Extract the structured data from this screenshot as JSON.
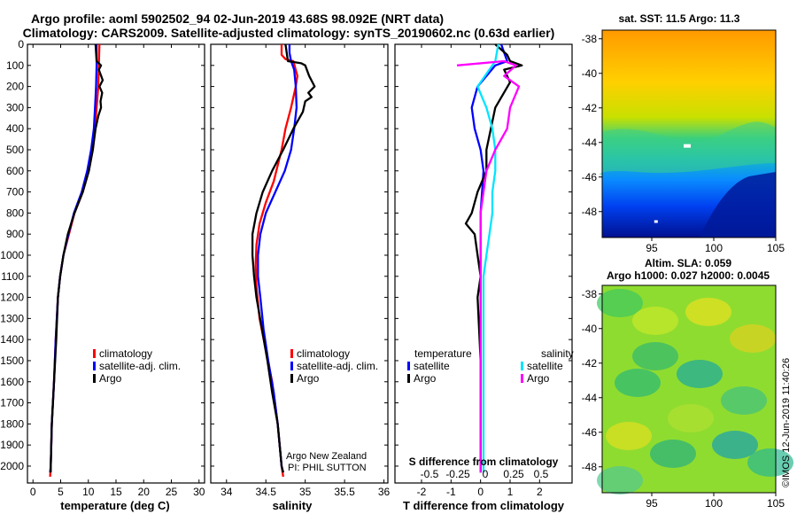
{
  "title_line1": "Argo profile: aoml 5902502_94 02-Jun-2019 43.68S 98.092E (NRT data)",
  "title_line2": "Climatology: CARS2009. Satellite-adjusted climatology: synTS_20190602.nc (0.63d earlier)",
  "credit_vertical": "©IMOS 12-Jun-2019 11:40:26",
  "colors": {
    "climatology": "#ff0000",
    "satellite": "#0000ff",
    "argo": "#000000",
    "sat_salinity": "#00e5ff",
    "argo_salinity": "#ff00ff"
  },
  "chart_data": [
    {
      "type": "line",
      "id": "temperature",
      "xlabel": "temperature (deg C)",
      "xlim": [
        -1,
        31
      ],
      "xticks": [
        0,
        5,
        10,
        15,
        20,
        25,
        30
      ],
      "ylim": [
        2080,
        0
      ],
      "yticks": [
        0,
        100,
        200,
        300,
        400,
        500,
        600,
        700,
        800,
        900,
        1000,
        1100,
        1200,
        1300,
        1400,
        1500,
        1600,
        1700,
        1800,
        1900,
        2000
      ],
      "legend": [
        "climatology",
        "satellite-adj. clim.",
        "Argo"
      ],
      "series": [
        {
          "name": "climatology",
          "color": "#ff0000",
          "points": [
            [
              12,
              0
            ],
            [
              11.9,
              100
            ],
            [
              11.8,
              200
            ],
            [
              11.5,
              300
            ],
            [
              11.2,
              400
            ],
            [
              10.8,
              500
            ],
            [
              10,
              600
            ],
            [
              9,
              700
            ],
            [
              7.5,
              800
            ],
            [
              6.5,
              900
            ],
            [
              5.5,
              1000
            ],
            [
              4.9,
              1100
            ],
            [
              4.5,
              1200
            ],
            [
              4.1,
              1400
            ],
            [
              3.8,
              1600
            ],
            [
              3.4,
              1800
            ],
            [
              3.2,
              2000
            ],
            [
              3.1,
              2050
            ]
          ]
        },
        {
          "name": "satellite-adj. clim.",
          "color": "#0000ff",
          "points": [
            [
              11.5,
              0
            ],
            [
              11.5,
              100
            ],
            [
              11.4,
              200
            ],
            [
              11.2,
              300
            ],
            [
              11,
              400
            ],
            [
              10.5,
              500
            ],
            [
              9.8,
              600
            ],
            [
              8.8,
              700
            ],
            [
              7.4,
              800
            ],
            [
              6.4,
              900
            ],
            [
              5.5,
              1000
            ],
            [
              4.9,
              1100
            ],
            [
              4.5,
              1200
            ],
            [
              4.1,
              1400
            ],
            [
              3.8,
              1600
            ],
            [
              3.4,
              1800
            ],
            [
              3.2,
              2000
            ],
            [
              3.1,
              2030
            ]
          ]
        },
        {
          "name": "Argo",
          "color": "#000000",
          "points": [
            [
              11.3,
              0
            ],
            [
              11.5,
              80
            ],
            [
              12.3,
              100
            ],
            [
              11.9,
              120
            ],
            [
              12.6,
              170
            ],
            [
              12,
              200
            ],
            [
              12.5,
              230
            ],
            [
              12.2,
              270
            ],
            [
              12.3,
              300
            ],
            [
              11.8,
              340
            ],
            [
              11.3,
              400
            ],
            [
              10.8,
              500
            ],
            [
              10.1,
              600
            ],
            [
              9,
              700
            ],
            [
              7.5,
              800
            ],
            [
              6.3,
              900
            ],
            [
              5.5,
              1000
            ],
            [
              4.9,
              1100
            ],
            [
              4.5,
              1200
            ],
            [
              4.2,
              1400
            ],
            [
              3.8,
              1600
            ],
            [
              3.4,
              1800
            ],
            [
              3.2,
              2000
            ],
            [
              3.2,
              2030
            ]
          ]
        }
      ]
    },
    {
      "type": "line",
      "id": "salinity",
      "xlabel": "salinity",
      "xlim": [
        33.8,
        36.05
      ],
      "xticks": [
        34,
        34.5,
        35,
        35.5,
        36
      ],
      "xticklabels": [
        "34",
        "34.5",
        "35",
        "35.5",
        "36"
      ],
      "ylim": [
        2080,
        0
      ],
      "legend": [
        "climatology",
        "satellite-adj. clim.",
        "Argo"
      ],
      "annotation": [
        "Argo New Zealand",
        "PI: PHIL SUTTON"
      ],
      "series": [
        {
          "name": "climatology",
          "color": "#ff0000",
          "points": [
            [
              34.7,
              0
            ],
            [
              34.7,
              50
            ],
            [
              34.75,
              70
            ],
            [
              34.85,
              80
            ],
            [
              34.9,
              150
            ],
            [
              34.88,
              200
            ],
            [
              34.82,
              300
            ],
            [
              34.75,
              400
            ],
            [
              34.7,
              500
            ],
            [
              34.6,
              650
            ],
            [
              34.5,
              750
            ],
            [
              34.42,
              850
            ],
            [
              34.38,
              950
            ],
            [
              34.37,
              1050
            ],
            [
              34.38,
              1150
            ],
            [
              34.42,
              1300
            ],
            [
              34.5,
              1450
            ],
            [
              34.58,
              1600
            ],
            [
              34.65,
              1800
            ],
            [
              34.7,
              2000
            ],
            [
              34.72,
              2050
            ]
          ]
        },
        {
          "name": "satellite-adj. clim.",
          "color": "#0000ff",
          "points": [
            [
              34.8,
              0
            ],
            [
              34.8,
              40
            ],
            [
              34.82,
              80
            ],
            [
              34.86,
              120
            ],
            [
              34.88,
              200
            ],
            [
              34.89,
              300
            ],
            [
              34.86,
              400
            ],
            [
              34.82,
              500
            ],
            [
              34.74,
              600
            ],
            [
              34.62,
              700
            ],
            [
              34.5,
              800
            ],
            [
              34.43,
              900
            ],
            [
              34.4,
              1000
            ],
            [
              34.4,
              1100
            ],
            [
              34.43,
              1200
            ],
            [
              34.47,
              1350
            ],
            [
              34.53,
              1500
            ],
            [
              34.6,
              1650
            ],
            [
              34.65,
              1800
            ],
            [
              34.7,
              2000
            ],
            [
              34.72,
              2030
            ]
          ]
        },
        {
          "name": "Argo",
          "color": "#000000",
          "points": [
            [
              34.75,
              0
            ],
            [
              34.78,
              80
            ],
            [
              34.95,
              90
            ],
            [
              35.0,
              100
            ],
            [
              35.05,
              150
            ],
            [
              35.12,
              200
            ],
            [
              35.04,
              230
            ],
            [
              35.08,
              250
            ],
            [
              35.0,
              270
            ],
            [
              34.97,
              320
            ],
            [
              34.85,
              400
            ],
            [
              34.72,
              500
            ],
            [
              34.58,
              600
            ],
            [
              34.46,
              700
            ],
            [
              34.38,
              800
            ],
            [
              34.33,
              900
            ],
            [
              34.33,
              1000
            ],
            [
              34.35,
              1100
            ],
            [
              34.38,
              1200
            ],
            [
              34.45,
              1350
            ],
            [
              34.52,
              1500
            ],
            [
              34.58,
              1650
            ],
            [
              34.65,
              1800
            ],
            [
              34.7,
              2000
            ],
            [
              34.72,
              2030
            ]
          ]
        }
      ]
    },
    {
      "type": "line",
      "id": "differences",
      "xlabel": "T difference from climatology",
      "xlim": [
        -2.9,
        3.1
      ],
      "xticks": [
        -2,
        -1,
        0,
        1,
        2
      ],
      "s_label": "S difference from climatology",
      "s_xticklabels": [
        "-0.5",
        "-0.25",
        "0",
        "0.25",
        "0.5"
      ],
      "legend_left_title": "temperature",
      "legend_left": [
        "satellite",
        "Argo"
      ],
      "legend_right_title": "salinity",
      "legend_right": [
        "satellite",
        "Argo"
      ],
      "series": [
        {
          "name": "T satellite",
          "color": "#0000ff",
          "points": [
            [
              0.7,
              0
            ],
            [
              0.9,
              80
            ],
            [
              0.5,
              100
            ],
            [
              0.2,
              150
            ],
            [
              -0.1,
              200
            ],
            [
              -0.3,
              300
            ],
            [
              -0.2,
              400
            ],
            [
              0,
              500
            ],
            [
              0.1,
              600
            ],
            [
              0,
              800
            ],
            [
              0,
              1000
            ],
            [
              0,
              1200
            ],
            [
              0,
              1500
            ],
            [
              0,
              1800
            ],
            [
              0,
              2030
            ]
          ]
        },
        {
          "name": "T Argo",
          "color": "#000000",
          "points": [
            [
              0.5,
              0
            ],
            [
              0.9,
              50
            ],
            [
              1.0,
              80
            ],
            [
              1.4,
              100
            ],
            [
              0.8,
              120
            ],
            [
              1.0,
              180
            ],
            [
              0.5,
              300
            ],
            [
              0.2,
              500
            ],
            [
              0.2,
              600
            ],
            [
              -0.1,
              700
            ],
            [
              -0.3,
              800
            ],
            [
              -0.5,
              850
            ],
            [
              -0.2,
              900
            ],
            [
              -0.1,
              1000
            ],
            [
              0,
              1100
            ],
            [
              -0.1,
              1200
            ],
            [
              0,
              1500
            ],
            [
              0,
              1800
            ],
            [
              0,
              2030
            ]
          ]
        },
        {
          "name": "S satellite",
          "color": "#00e5ff",
          "points": [
            [
              0.6,
              0
            ],
            [
              0.5,
              80
            ],
            [
              -0.1,
              200
            ],
            [
              0.2,
              300
            ],
            [
              0.4,
              400
            ],
            [
              0.5,
              500
            ],
            [
              0.5,
              600
            ],
            [
              0.4,
              700
            ],
            [
              0.4,
              800
            ],
            [
              0.3,
              900
            ],
            [
              0.2,
              1000
            ],
            [
              0.1,
              1100
            ],
            [
              0.1,
              1200
            ],
            [
              0.1,
              1400
            ],
            [
              0.1,
              1600
            ],
            [
              0.1,
              1800
            ],
            [
              0.1,
              2030
            ]
          ]
        },
        {
          "name": "S Argo",
          "color": "#ff00ff",
          "points": [
            [
              -0.8,
              100
            ],
            [
              0.8,
              80
            ],
            [
              1.2,
              100
            ],
            [
              0.8,
              150
            ],
            [
              1.3,
              200
            ],
            [
              1.0,
              300
            ],
            [
              0.9,
              400
            ],
            [
              0.5,
              500
            ],
            [
              0.2,
              600
            ],
            [
              0.0,
              800
            ],
            [
              0.0,
              1000
            ],
            [
              0.0,
              1300
            ],
            [
              0.0,
              1700
            ],
            [
              0.0,
              2030
            ]
          ]
        }
      ]
    },
    {
      "type": "heatmap",
      "id": "sst_map",
      "title": "sat. SST: 11.5 Argo: 11.3",
      "xticks": [
        95,
        100,
        105
      ],
      "yticks": [
        -38,
        -40,
        -42,
        -44,
        -46,
        -48
      ],
      "xlim": [
        91,
        105
      ],
      "ylim": [
        -49.5,
        -37.5
      ]
    },
    {
      "type": "heatmap",
      "id": "sla_map",
      "title_line1": "Altim. SLA: 0.059",
      "title_line2": "Argo h1000: 0.027 h2000: 0.0045",
      "xticks": [
        95,
        100,
        105
      ],
      "yticks": [
        -38,
        -40,
        -42,
        -44,
        -46,
        -48
      ],
      "xlim": [
        91,
        105
      ],
      "ylim": [
        -49.5,
        -37.5
      ]
    }
  ]
}
